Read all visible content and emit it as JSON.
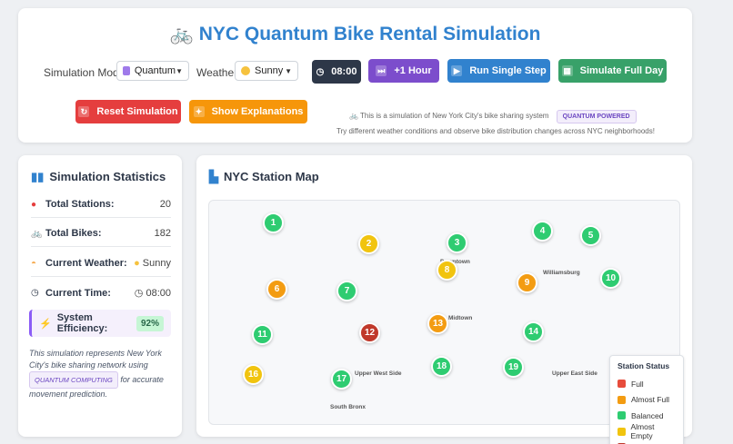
{
  "header": {
    "title": "NYC Quantum Bike Rental Simulation",
    "title_icon": "bicycle-icon",
    "mode_label": "Simulation Mode:",
    "mode_value": "Quantum",
    "weather_label": "Weather:",
    "weather_value": "Sunny",
    "time": "08:00",
    "buttons": {
      "plus_hour": "+1 Hour",
      "single_step": "Run Single Step",
      "full_day": "Simulate Full Day",
      "reset": "Reset Simulation",
      "explanations": "Show Explanations"
    },
    "info_text": "This is a simulation of New York City's bike sharing system",
    "info_badge": "QUANTUM POWERED",
    "info_sub": "Try different weather conditions and observe bike distribution changes across NYC neighborhoods!"
  },
  "stats": {
    "title": "Simulation Statistics",
    "total_stations_label": "Total Stations:",
    "total_stations": "20",
    "total_bikes_label": "Total Bikes:",
    "total_bikes": "182",
    "weather_label": "Current Weather:",
    "weather": "Sunny",
    "time_label": "Current Time:",
    "time": "08:00",
    "efficiency_label": "System Efficiency:",
    "efficiency": "92%",
    "desc_pre": "This simulation represents New York City's bike sharing network using",
    "desc_badge": "QUANTUM COMPUTING",
    "desc_post": "for accurate movement prediction."
  },
  "map": {
    "title": "NYC Station Map",
    "areas": [
      "Downtown",
      "Williamsburg",
      "Midtown",
      "Upper West Side",
      "Upper East Side",
      "South Bronx"
    ],
    "legend_title": "Station Status",
    "legend": [
      {
        "label": "Full",
        "color": "#e74c3c"
      },
      {
        "label": "Almost Full",
        "color": "#f39c12"
      },
      {
        "label": "Balanced",
        "color": "#2ecc71"
      },
      {
        "label": "Almost Empty",
        "color": "#f1c40f"
      },
      {
        "label": "Empty",
        "color": "#c0392b"
      }
    ],
    "stations": [
      {
        "id": "1",
        "status": "Balanced"
      },
      {
        "id": "2",
        "status": "Almost Empty"
      },
      {
        "id": "3",
        "status": "Balanced"
      },
      {
        "id": "4",
        "status": "Balanced"
      },
      {
        "id": "5",
        "status": "Balanced"
      },
      {
        "id": "6",
        "status": "Almost Full"
      },
      {
        "id": "7",
        "status": "Balanced"
      },
      {
        "id": "8",
        "status": "Almost Empty"
      },
      {
        "id": "9",
        "status": "Almost Full"
      },
      {
        "id": "10",
        "status": "Balanced"
      },
      {
        "id": "11",
        "status": "Balanced"
      },
      {
        "id": "12",
        "status": "Empty"
      },
      {
        "id": "13",
        "status": "Almost Full"
      },
      {
        "id": "14",
        "status": "Balanced"
      },
      {
        "id": "16",
        "status": "Almost Empty"
      },
      {
        "id": "17",
        "status": "Balanced"
      },
      {
        "id": "18",
        "status": "Balanced"
      },
      {
        "id": "19",
        "status": "Balanced"
      }
    ]
  },
  "colors": {
    "primary": "#3182ce",
    "purple": "#6b46c1",
    "reset": "#e53e3e",
    "explain": "#f6960a",
    "single": "#3182ce",
    "fullday": "#38a169",
    "time_bg": "#2d3748"
  }
}
